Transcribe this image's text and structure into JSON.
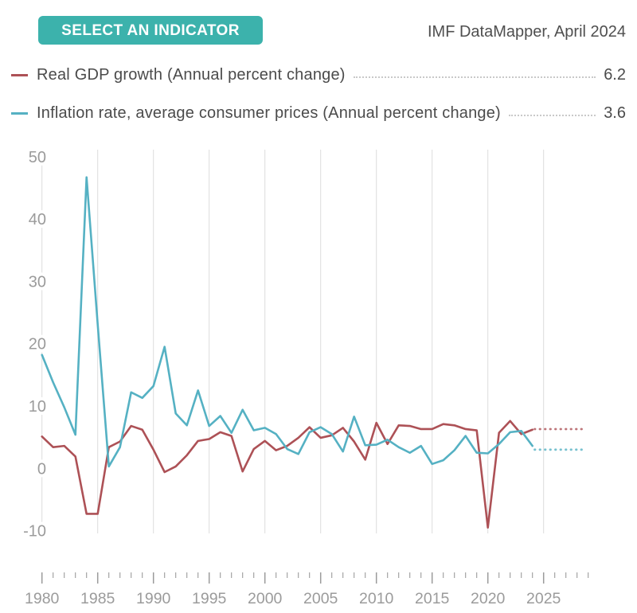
{
  "header": {
    "button_label": "SELECT AN INDICATOR",
    "attribution": "IMF DataMapper, April 2024"
  },
  "legend": [
    {
      "label": "Real GDP growth (Annual percent change)",
      "value": "6.2",
      "color": "#ad5156"
    },
    {
      "label": "Inflation rate, average consumer prices (Annual percent change)",
      "value": "3.6",
      "color": "#55b1c3"
    }
  ],
  "colors": {
    "button": "#3cb2ac",
    "gdp_line": "#ad5156",
    "inflation_line": "#55b1c3",
    "gridline": "#dcdcdc",
    "axis_text": "#9b9b9b",
    "tick": "#9b9b9b",
    "text": "#4b4b4b"
  },
  "chart_data": {
    "type": "line",
    "title": "",
    "xlabel": "",
    "ylabel": "",
    "ylim": [
      -10,
      50
    ],
    "yticks": [
      50,
      40,
      30,
      20,
      10,
      0,
      -10
    ],
    "grid": "vertical-only",
    "gridline_years": [
      1980,
      1985,
      1990,
      1995,
      2000,
      2005,
      2010,
      2015,
      2020,
      2025
    ],
    "xtick_label_years": [
      1980,
      1985,
      1990,
      1995,
      2000,
      2005,
      2010,
      2015,
      2020,
      2025
    ],
    "x_minor_tick_range": [
      1980,
      2029
    ],
    "legend_position": "top",
    "x": [
      1980,
      1981,
      1982,
      1983,
      1984,
      1985,
      1986,
      1987,
      1988,
      1989,
      1990,
      1991,
      1992,
      1993,
      1994,
      1995,
      1996,
      1997,
      1998,
      1999,
      2000,
      2001,
      2002,
      2003,
      2004,
      2005,
      2006,
      2007,
      2008,
      2009,
      2010,
      2011,
      2012,
      2013,
      2014,
      2015,
      2016,
      2017,
      2018,
      2019,
      2020,
      2021,
      2022,
      2023,
      2024
    ],
    "series": [
      {
        "name": "Real GDP growth (Annual percent change)",
        "color": "#ad5156",
        "current_value": 6.2,
        "values": [
          5.1,
          3.4,
          3.6,
          1.9,
          -7.3,
          -7.3,
          3.4,
          4.3,
          6.8,
          6.2,
          3.0,
          -0.6,
          0.3,
          2.1,
          4.4,
          4.7,
          5.8,
          5.2,
          -0.5,
          3.1,
          4.4,
          2.9,
          3.6,
          4.9,
          6.6,
          4.9,
          5.3,
          6.5,
          4.3,
          1.4,
          7.3,
          3.9,
          6.9,
          6.8,
          6.3,
          6.3,
          7.1,
          6.9,
          6.3,
          6.1,
          -9.5,
          5.7,
          7.6,
          5.5,
          6.2
        ]
      },
      {
        "name": "Inflation rate, average consumer prices (Annual percent change)",
        "color": "#55b1c3",
        "current_value": 3.6,
        "values": [
          18.2,
          13.8,
          9.8,
          5.4,
          46.7,
          23.1,
          0.3,
          3.4,
          12.2,
          11.3,
          13.2,
          19.5,
          8.8,
          6.9,
          12.5,
          6.8,
          8.4,
          5.7,
          9.4,
          6.1,
          6.5,
          5.5,
          3.1,
          2.3,
          5.8,
          6.6,
          5.5,
          2.7,
          8.3,
          3.7,
          3.8,
          4.6,
          3.4,
          2.5,
          3.6,
          0.7,
          1.3,
          2.9,
          5.2,
          2.5,
          2.4,
          3.9,
          5.8,
          6.0,
          3.6
        ]
      }
    ],
    "projections": [
      {
        "series": "Real GDP growth (Annual percent change)",
        "style": "dotted",
        "x": [
          2024.2,
          2028.8
        ],
        "values": [
          6.3,
          6.3
        ]
      },
      {
        "series": "Inflation rate, average consumer prices (Annual percent change)",
        "style": "dotted",
        "x": [
          2024.2,
          2028.8
        ],
        "values": [
          3.0,
          3.0
        ]
      }
    ]
  }
}
